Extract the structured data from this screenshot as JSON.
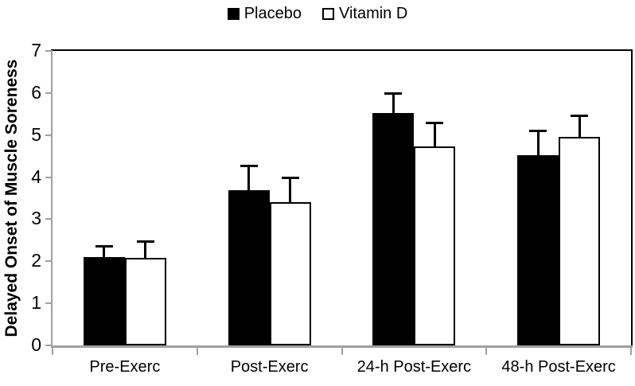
{
  "chart_data": {
    "type": "bar",
    "title": "",
    "ylabel": "Delayed Onset of Muscle Soreness",
    "xlabel": "",
    "ylim": [
      0,
      7
    ],
    "yticks": [
      0,
      1,
      2,
      3,
      4,
      5,
      6,
      7
    ],
    "categories": [
      "Pre-Exerc",
      "Post-Exerc",
      "24-h Post-Exerc",
      "48-h Post-Exerc"
    ],
    "series": [
      {
        "name": "Placebo",
        "fill": "#000000",
        "border": "#000000",
        "values": [
          2.1,
          3.69,
          5.52,
          4.52
        ],
        "error_upper": [
          0.28,
          0.6,
          0.5,
          0.61
        ]
      },
      {
        "name": "Vitamin D",
        "fill": "#ffffff",
        "border": "#000000",
        "values": [
          2.08,
          3.4,
          4.73,
          4.95
        ],
        "error_upper": [
          0.42,
          0.61,
          0.59,
          0.53
        ]
      }
    ],
    "legend_position": "top-center",
    "grid": false,
    "axis_color": "#a0a0a0",
    "error_bar_color": "#000000",
    "text_color": "#000000"
  }
}
